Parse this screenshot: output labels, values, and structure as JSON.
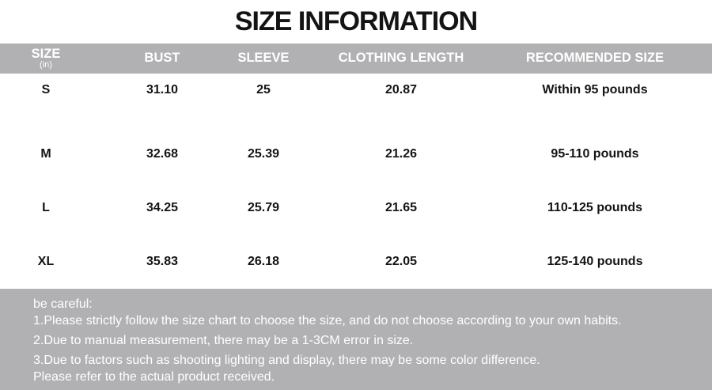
{
  "title": "SIZE INFORMATION",
  "colors": {
    "band_gray": "#b1b1b3",
    "header_text": "#ffffff",
    "body_text": "#141414",
    "page_bg": "#ffffff"
  },
  "table": {
    "columns": [
      {
        "label": "SIZE",
        "sublabel": "(in)"
      },
      {
        "label": "BUST"
      },
      {
        "label": "SLEEVE"
      },
      {
        "label": "CLOTHING LENGTH"
      },
      {
        "label": "RECOMMENDED SIZE"
      }
    ],
    "rows": [
      [
        "S",
        "31.10",
        "25",
        "20.87",
        "Within 95 pounds"
      ],
      [
        "M",
        "32.68",
        "25.39",
        "21.26",
        "95-110 pounds"
      ],
      [
        "L",
        "34.25",
        "25.79",
        "21.65",
        "110-125 pounds"
      ],
      [
        "XL",
        "35.83",
        "26.18",
        "22.05",
        "125-140 pounds"
      ]
    ]
  },
  "notes": {
    "heading": "be careful:",
    "lines": [
      "1.Please strictly follow the size chart to choose the size, and do not choose according to your own habits.",
      "2.Due to manual measurement, there may be a 1-3CM error in size.",
      "3.Due to factors such as shooting lighting and display, there may be some color difference.",
      "Please refer to the actual product received."
    ]
  }
}
